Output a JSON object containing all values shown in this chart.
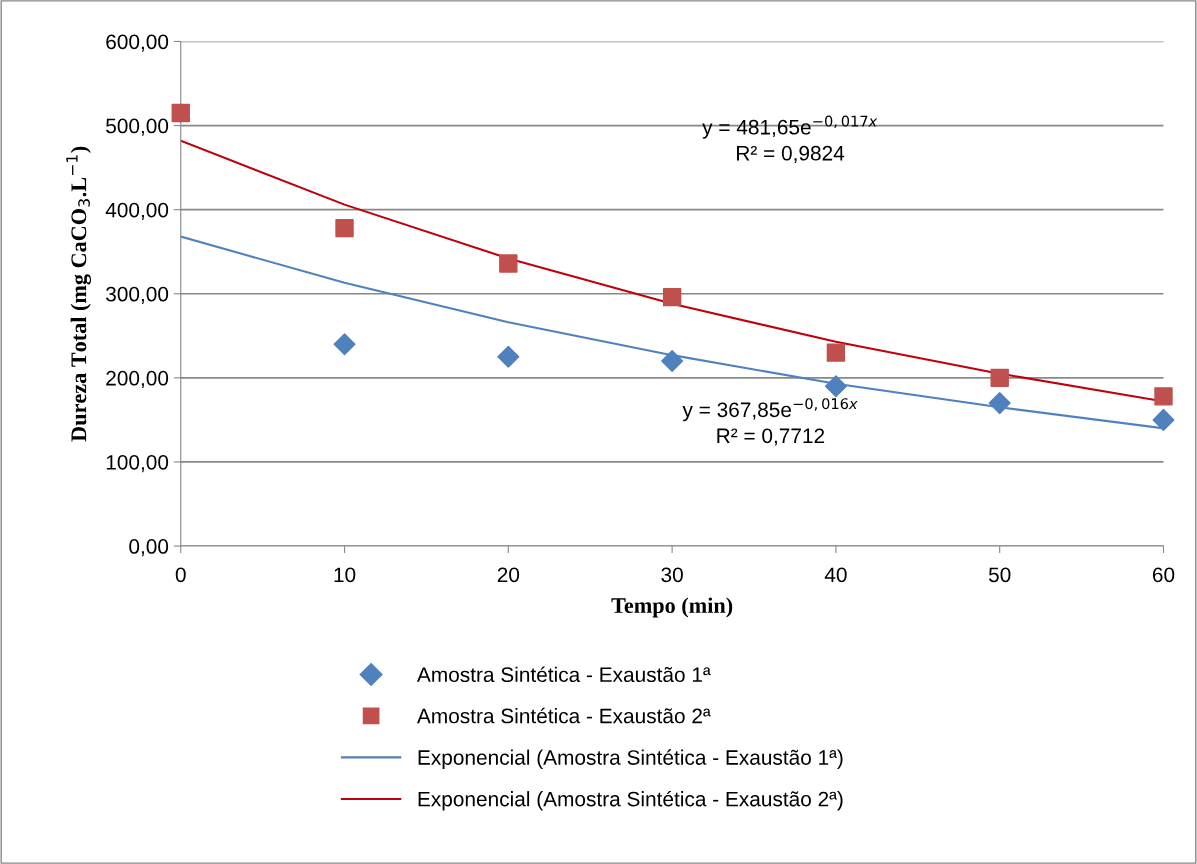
{
  "chart_data": {
    "type": "scatter",
    "xlabel": "Tempo (min)",
    "ylabel": "Dureza Total (mg CaCO$_{3}$.L$^{−1}$)",
    "x": [
      0,
      10,
      20,
      30,
      40,
      50,
      60
    ],
    "series": [
      {
        "name": "Amostra Sintética - Exaustão 1ª",
        "marker": "diamond",
        "color": "#4f81bd",
        "values": [
          null,
          240,
          225,
          220,
          190,
          170,
          150
        ]
      },
      {
        "name": "Amostra Sintética - Exaustão 2ª",
        "marker": "square",
        "color": "#c0504d",
        "values": [
          515,
          378,
          336,
          296,
          230,
          200,
          178
        ]
      },
      {
        "name": "Exponencial (Amostra Sintética - Exaustão 1ª)",
        "type": "line",
        "marker": "none",
        "line_style": "solid",
        "color": "#4f81bd",
        "values": [
          368,
          313,
          266,
          227,
          193,
          165,
          140
        ]
      },
      {
        "name": "Exponencial (Amostra Sintética - Exaustão 2ª)",
        "type": "line",
        "marker": "none",
        "line_style": "solid",
        "color": "#c0000b",
        "values": [
          482,
          406,
          342,
          288,
          243,
          205,
          172
        ]
      }
    ],
    "annotations": [
      "y = 481,65e$^{−0,017x}$",
      "R² = 0,9824",
      "y = 367,85e$^{−0,016x}$",
      "R² = 0,7712"
    ],
    "xlim": [
      0,
      60
    ],
    "xticks": [
      0,
      10,
      20,
      30,
      40,
      50,
      60
    ],
    "ylim": [
      0,
      600
    ],
    "yticks": [
      {
        "value": 0,
        "label": "0,00"
      },
      {
        "value": 100,
        "label": "100,00"
      },
      {
        "value": 200,
        "label": "200,00"
      },
      {
        "value": 300,
        "label": "300,00"
      },
      {
        "value": 400,
        "label": "400,00"
      },
      {
        "value": 500,
        "label": "500,00"
      },
      {
        "value": 600,
        "label": "600,00"
      }
    ],
    "grid": "y",
    "legend": "bottom"
  }
}
